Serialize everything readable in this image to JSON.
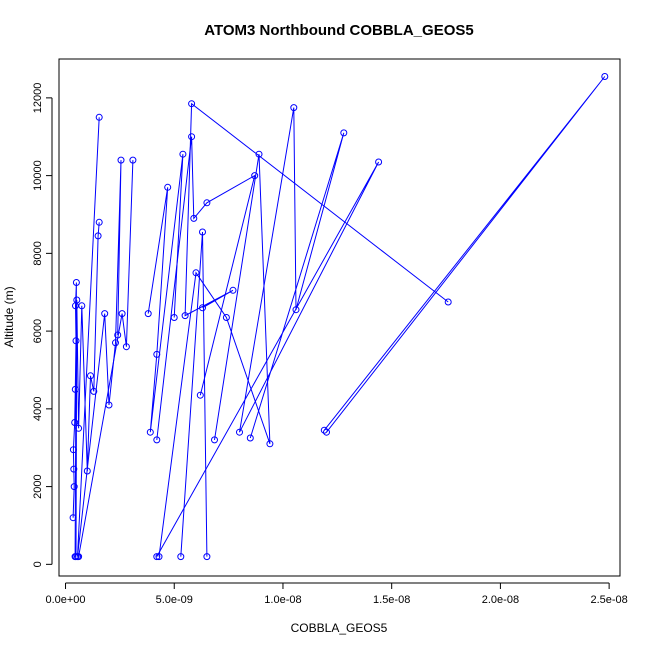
{
  "chart_data": {
    "type": "line",
    "title": "ATOM3 Northbound COBBLA_GEOS5",
    "xlabel": "COBBLA_GEOS5",
    "ylabel": "Altitude (m)",
    "xlim": [
      -3e-10,
      2.55e-08
    ],
    "ylim": [
      -300,
      13000
    ],
    "x_ticks": [
      0,
      5e-09,
      1e-08,
      1.5e-08,
      2e-08,
      2.5e-08
    ],
    "x_tick_labels": [
      "0.0e+00",
      "5.0e-09",
      "1.0e-08",
      "1.5e-08",
      "2.0e-08",
      "2.5e-08"
    ],
    "y_ticks": [
      0,
      2000,
      4000,
      6000,
      8000,
      10000,
      12000
    ],
    "y_tick_labels": [
      "0",
      "2000",
      "4000",
      "6000",
      "8000",
      "10000",
      "12000"
    ],
    "series_color": "#0000ff",
    "grid": false,
    "series": [
      {
        "segments": [
          {
            "x": [
              3.5e-10,
              4e-10,
              3.8e-10,
              3.6e-10,
              4.2e-10,
              4.5e-10,
              4.8e-10,
              4.6e-10,
              5e-10,
              4.4e-10
            ],
            "y": [
              1200,
              2000,
              2450,
              2950,
              3650,
              4500,
              5750,
              6650,
              7250,
              200
            ]
          },
          {
            "x": [
              4.8e-10,
              5.2e-10,
              6e-10,
              7.5e-10,
              1e-09,
              1.15e-09,
              1.3e-09,
              1.5e-09,
              1.55e-09
            ],
            "y": [
              200,
              6800,
              3500,
              6650,
              2400,
              4850,
              4450,
              8450,
              8800
            ]
          },
          {
            "x": [
              1.55e-09,
              5.5e-10,
              1.8e-09,
              2e-09,
              2.3e-09,
              2.55e-09,
              2.4e-09
            ],
            "y": [
              11500,
              200,
              6450,
              4100,
              5700,
              10400,
              5900
            ]
          },
          {
            "x": [
              6e-10,
              2.6e-09,
              2.8e-09,
              3.1e-09
            ],
            "y": [
              200,
              6450,
              5600,
              10400
            ]
          },
          {
            "x": [
              3.8e-09,
              4.7e-09,
              4.2e-09,
              3.9e-09,
              5.4e-09,
              5e-09
            ],
            "y": [
              6450,
              9700,
              5400,
              3400,
              10550,
              6350
            ]
          },
          {
            "x": [
              4.2e-09,
              5.8e-09,
              5.9e-09,
              6.5e-09,
              8.7e-09,
              6.2e-09
            ],
            "y": [
              3200,
              11000,
              8900,
              9300,
              10000,
              4350
            ]
          },
          {
            "x": [
              6.3e-09,
              7.7e-09,
              5.5e-09,
              5.8e-09,
              1.76e-08
            ],
            "y": [
              6600,
              7050,
              6400,
              11850,
              6750
            ]
          },
          {
            "x": [
              5.3e-09,
              6.3e-09,
              6.5e-09
            ],
            "y": [
              200,
              8550,
              200
            ]
          },
          {
            "x": [
              4.3e-09,
              6e-09,
              7.4e-09,
              9.4e-09,
              8.9e-09,
              6.85e-09
            ],
            "y": [
              200,
              7500,
              6350,
              3100,
              10550,
              3200
            ]
          },
          {
            "x": [
              8.5e-09,
              1.28e-08,
              1.06e-08,
              1.05e-08,
              8e-09,
              1.44e-08,
              4.2e-09
            ],
            "y": [
              3250,
              11100,
              6550,
              11750,
              3400,
              10350,
              200
            ]
          },
          {
            "x": [
              1.19e-08,
              2.48e-08,
              1.2e-08
            ],
            "y": [
              3450,
              12550,
              3400
            ]
          }
        ]
      }
    ]
  }
}
